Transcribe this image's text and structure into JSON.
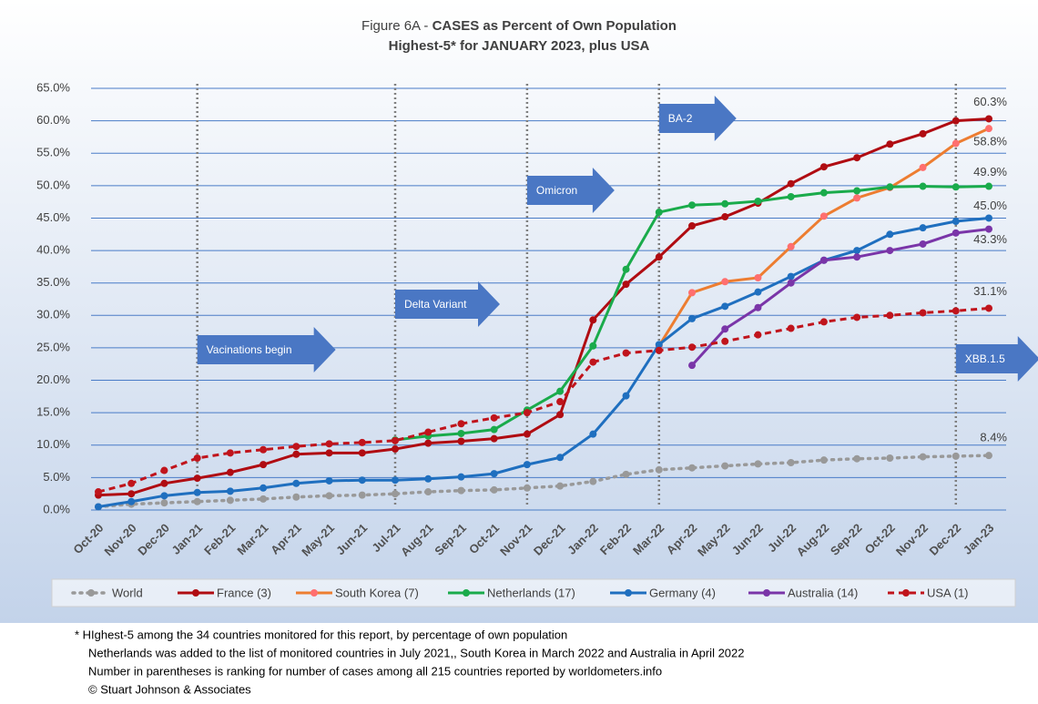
{
  "chart_data": {
    "type": "line",
    "title_prefix": "Figure 6A - ",
    "title": "CASES as Percent of Own Population",
    "subtitle": "Highest-5* for JANUARY 2023, plus USA",
    "categories": [
      "Oct-20",
      "Nov-20",
      "Dec-20",
      "Jan-21",
      "Feb-21",
      "Mar-21",
      "Apr-21",
      "May-21",
      "Jun-21",
      "Jul-21",
      "Aug-21",
      "Sep-21",
      "Oct-21",
      "Nov-21",
      "Dec-21",
      "Jan-22",
      "Feb-22",
      "Mar-22",
      "Apr-22",
      "May-22",
      "Jun-22",
      "Jul-22",
      "Aug-22",
      "Sep-22",
      "Oct-22",
      "Nov-22",
      "Dec-22",
      "Jan-23"
    ],
    "ylim": [
      0,
      65
    ],
    "yticks": [
      {
        "value": 0,
        "label": "0.0%"
      },
      {
        "value": 5,
        "label": "5.0%"
      },
      {
        "value": 10,
        "label": "10.0%"
      },
      {
        "value": 15,
        "label": "15.0%"
      },
      {
        "value": 20,
        "label": "20.0%"
      },
      {
        "value": 25,
        "label": "25.0%"
      },
      {
        "value": 30,
        "label": "30.0%"
      },
      {
        "value": 35,
        "label": "35.0%"
      },
      {
        "value": 40,
        "label": "40.0%"
      },
      {
        "value": 45,
        "label": "45.0%"
      },
      {
        "value": 50,
        "label": "50.0%"
      },
      {
        "value": 55,
        "label": "55.0%"
      },
      {
        "value": 60,
        "label": "60.0%"
      },
      {
        "value": 65,
        "label": "65.0%"
      }
    ],
    "grid": true,
    "series": [
      {
        "name": "World",
        "color": "#999999",
        "dash": "dotted",
        "values": [
          0.5,
          0.9,
          1.1,
          1.3,
          1.5,
          1.7,
          2.0,
          2.2,
          2.3,
          2.5,
          2.8,
          3.0,
          3.1,
          3.4,
          3.7,
          4.4,
          5.5,
          6.2,
          6.5,
          6.8,
          7.1,
          7.3,
          7.7,
          7.9,
          8.0,
          8.2,
          8.3,
          8.4
        ],
        "value_labels": [
          null,
          null,
          null,
          null,
          null,
          null,
          null,
          null,
          null,
          null,
          null,
          null,
          null,
          null,
          null,
          null,
          null,
          null,
          null,
          null,
          null,
          null,
          null,
          null,
          null,
          null,
          null,
          "8.4%"
        ]
      },
      {
        "name": "France (3)",
        "color": "#b00c12",
        "dash": "solid",
        "values": [
          2.3,
          2.5,
          4.1,
          4.9,
          5.8,
          7.0,
          8.6,
          8.8,
          8.8,
          9.4,
          10.3,
          10.6,
          11.0,
          11.7,
          14.7,
          29.3,
          34.8,
          39.0,
          43.8,
          45.2,
          47.3,
          50.3,
          52.9,
          54.3,
          56.4,
          58.0,
          60.0,
          60.3
        ],
        "value_labels": [
          null,
          null,
          null,
          null,
          null,
          null,
          null,
          null,
          null,
          null,
          null,
          null,
          null,
          null,
          null,
          null,
          null,
          null,
          null,
          null,
          null,
          null,
          null,
          null,
          null,
          null,
          null,
          "60.3%"
        ]
      },
      {
        "name": "South Korea (7)",
        "color": "#ed7d31",
        "marker_color": "#ff6f6f",
        "dash": "solid",
        "values": [
          null,
          null,
          null,
          null,
          null,
          null,
          null,
          null,
          null,
          null,
          null,
          null,
          null,
          null,
          null,
          null,
          null,
          25.3,
          33.5,
          35.2,
          35.8,
          40.6,
          45.3,
          48.1,
          49.7,
          52.8,
          56.5,
          58.8
        ],
        "value_labels": [
          null,
          null,
          null,
          null,
          null,
          null,
          null,
          null,
          null,
          null,
          null,
          null,
          null,
          null,
          null,
          null,
          null,
          null,
          null,
          null,
          null,
          null,
          null,
          null,
          null,
          null,
          null,
          "58.8%"
        ]
      },
      {
        "name": "Netherlands (17)",
        "color": "#1aab4b",
        "dash": "solid",
        "values": [
          null,
          null,
          null,
          null,
          null,
          null,
          null,
          null,
          null,
          10.8,
          11.4,
          11.8,
          12.4,
          15.4,
          18.3,
          25.3,
          37.1,
          45.9,
          47.0,
          47.2,
          47.6,
          48.3,
          48.9,
          49.2,
          49.8,
          49.9,
          49.8,
          49.9
        ],
        "value_labels": [
          null,
          null,
          null,
          null,
          null,
          null,
          null,
          null,
          null,
          null,
          null,
          null,
          null,
          null,
          null,
          null,
          null,
          null,
          null,
          null,
          null,
          null,
          null,
          null,
          null,
          null,
          null,
          "49.9%"
        ]
      },
      {
        "name": "Germany (4)",
        "color": "#1f6fbf",
        "dash": "solid",
        "values": [
          0.5,
          1.3,
          2.2,
          2.7,
          2.9,
          3.4,
          4.1,
          4.5,
          4.6,
          4.6,
          4.8,
          5.1,
          5.6,
          7.0,
          8.1,
          11.7,
          17.6,
          25.5,
          29.5,
          31.4,
          33.6,
          36.0,
          38.5,
          40.0,
          42.5,
          43.5,
          44.5,
          45.0
        ],
        "value_labels": [
          null,
          null,
          null,
          null,
          null,
          null,
          null,
          null,
          null,
          null,
          null,
          null,
          null,
          null,
          null,
          null,
          null,
          null,
          null,
          null,
          null,
          null,
          null,
          null,
          null,
          null,
          null,
          "45.0%"
        ]
      },
      {
        "name": "Australia (14)",
        "color": "#7a35a8",
        "dash": "solid",
        "values": [
          null,
          null,
          null,
          null,
          null,
          null,
          null,
          null,
          null,
          null,
          null,
          null,
          null,
          null,
          null,
          null,
          null,
          null,
          22.3,
          27.9,
          31.2,
          35.0,
          38.5,
          39.0,
          40.0,
          41.0,
          42.7,
          43.3
        ],
        "value_labels": [
          null,
          null,
          null,
          null,
          null,
          null,
          null,
          null,
          null,
          null,
          null,
          null,
          null,
          null,
          null,
          null,
          null,
          null,
          null,
          null,
          null,
          null,
          null,
          null,
          null,
          null,
          null,
          "43.3%"
        ]
      },
      {
        "name": "USA (1)",
        "color": "#c0141c",
        "dash": "dashed",
        "values": [
          2.8,
          4.1,
          6.1,
          8.0,
          8.8,
          9.3,
          9.8,
          10.2,
          10.4,
          10.7,
          12.0,
          13.3,
          14.2,
          15.0,
          16.7,
          22.8,
          24.2,
          24.6,
          25.1,
          26.0,
          27.0,
          28.0,
          29.0,
          29.7,
          30.0,
          30.4,
          30.7,
          31.1
        ],
        "value_labels": [
          null,
          null,
          null,
          null,
          null,
          null,
          null,
          null,
          null,
          null,
          null,
          null,
          null,
          null,
          null,
          null,
          null,
          null,
          null,
          null,
          null,
          null,
          null,
          null,
          null,
          null,
          null,
          "31.1%"
        ]
      }
    ],
    "vlines": [
      "Jan-21",
      "Jul-21",
      "Nov-21",
      "Mar-22",
      "Dec-22"
    ],
    "annotations": [
      {
        "text": "Vacinations begin",
        "at": "Jan-21"
      },
      {
        "text": "Delta Variant",
        "at": "Jul-21"
      },
      {
        "text": "Omicron",
        "at": "Nov-21"
      },
      {
        "text": "BA-2",
        "at": "Mar-22"
      },
      {
        "text": "XBB.1.5",
        "at": "Dec-22"
      }
    ],
    "footnotes": [
      "* HIghest-5 among the 34 countries monitored for this report, by percentage of own population",
      "Netherlands was added to the list of monitored countries in July 2021,, South Korea in March 2022 and Australia in April 2022",
      "Number in parentheses is ranking for number of cases among all 215 countries reported by worldometers.info",
      "© Stuart Johnson & Associates"
    ]
  }
}
